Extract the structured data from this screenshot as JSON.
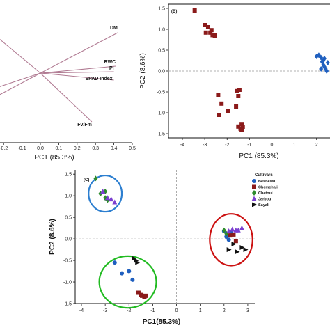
{
  "colors": {
    "axis": "#111111",
    "zero_line": "#999999",
    "loading_line": "#b07a92",
    "dark_red": "#8b1a1a",
    "blue": "#1f5fbf",
    "green": "#2e8b2e",
    "purple": "#7b3fd0",
    "black": "#111111",
    "ellipse_blue": "#2d7fd0",
    "ellipse_green": "#22bb22",
    "ellipse_red": "#cc1111"
  },
  "chart_data": [
    {
      "panel": "a",
      "type": "scatter",
      "title": "",
      "xlabel": "PC1 (85.3%)",
      "ylabel": "",
      "xlim": [
        -0.25,
        0.5
      ],
      "ylim": [
        -1.0,
        1.0
      ],
      "xticks": [
        "-0.2",
        "-0.1",
        "0.0",
        "0.1",
        "0.2",
        "0.3",
        "0.4",
        "0.5"
      ],
      "loadings": [
        {
          "name": "DM",
          "x": 0.42,
          "y": 0.58
        },
        {
          "name": "RWC",
          "x": 0.41,
          "y": 0.1
        },
        {
          "name": "PI",
          "x": 0.4,
          "y": 0.02
        },
        {
          "name": "SPAD Index",
          "x": 0.4,
          "y": -0.1
        },
        {
          "name": "Fv/Fm",
          "x": 0.28,
          "y": -0.7
        }
      ],
      "origin_lines_to_left": [
        {
          "x": -0.25,
          "y": 0.55
        },
        {
          "x": -0.25,
          "y": -0.22
        },
        {
          "x": -0.25,
          "y": -0.35
        }
      ]
    },
    {
      "panel": "b",
      "label": "(B)",
      "type": "scatter",
      "title": "",
      "xlabel": "PC1 (85.3%)",
      "ylabel": "PC2 (8.6%)",
      "xlim": [
        -4,
        2.6
      ],
      "ylim": [
        -1.6,
        1.6
      ],
      "xticks": [
        "-4",
        "-3",
        "-2",
        "-1",
        "0",
        "1",
        "2"
      ],
      "yticks": [
        "1.5",
        "1.0",
        "0.5",
        "0.0",
        "-0.5",
        "-1.0",
        "-1.5"
      ],
      "series": [
        {
          "name": "",
          "color": "dark_red",
          "marker": "square",
          "x": [
            -3.45,
            -3.0,
            -2.95,
            -2.85,
            -2.75,
            -2.7,
            -2.65,
            -2.55,
            -2.4,
            -2.25,
            -2.35,
            -1.95,
            -1.55,
            -1.5,
            -1.45,
            -1.6,
            -1.35,
            -1.5,
            -1.4,
            -1.35,
            -1.3
          ],
          "y": [
            1.45,
            1.1,
            0.92,
            1.05,
            0.92,
            0.98,
            0.86,
            0.85,
            -0.58,
            -0.78,
            -1.05,
            -0.95,
            -0.48,
            -0.6,
            -0.45,
            -0.85,
            -1.27,
            -1.33,
            -1.38,
            -1.4,
            -1.35
          ]
        },
        {
          "name": "",
          "color": "blue",
          "marker": "diamond",
          "x": [
            2.0,
            2.1,
            2.2,
            2.25,
            2.3,
            2.35,
            2.4,
            2.45,
            2.2,
            2.3,
            2.35,
            2.5
          ],
          "y": [
            0.35,
            0.38,
            0.32,
            0.22,
            0.15,
            0.1,
            0.05,
            0.0,
            0.05,
            0.25,
            0.3,
            0.2
          ]
        }
      ]
    },
    {
      "panel": "c",
      "label": "(C)",
      "type": "scatter",
      "title": "",
      "xlabel": "PC1(85.3%)",
      "ylabel": "PC2 (8.6%)",
      "xlim": [
        -4,
        3.5
      ],
      "ylim": [
        -1.5,
        1.6
      ],
      "xticks": [
        "-4",
        "-3",
        "-2",
        "-1",
        "0",
        "1",
        "2",
        "3"
      ],
      "yticks": [
        "1.5",
        "1.0",
        "0.5",
        "0.0",
        "-0.5",
        "-1.0",
        "-1.5"
      ],
      "legend_title": "Cultivars",
      "legend_position": "top-right",
      "series": [
        {
          "name": "Besbessi",
          "color": "blue",
          "marker": "circle",
          "x": [
            -2.6,
            -2.3,
            -2.0,
            -1.85,
            2.0,
            2.1,
            2.3,
            2.2
          ],
          "y": [
            -0.55,
            -0.8,
            -0.75,
            -0.95,
            0.18,
            0.05,
            0.15,
            -0.02
          ]
        },
        {
          "name": "Chemchali",
          "color": "dark_red",
          "marker": "square",
          "x": [
            -1.6,
            -1.5,
            -1.45,
            -1.35,
            -1.3,
            2.25,
            2.4,
            2.5
          ],
          "y": [
            -1.25,
            -1.3,
            -1.32,
            -1.35,
            -1.32,
            0.08,
            0.1,
            -0.05
          ]
        },
        {
          "name": "Chetoui",
          "color": "green",
          "marker": "diamond",
          "x": [
            -3.4,
            -3.2,
            -3.0,
            -3.0,
            -2.9,
            2.0,
            2.1
          ],
          "y": [
            1.4,
            1.05,
            0.95,
            1.1,
            0.9,
            0.2,
            0.12
          ]
        },
        {
          "name": "Jarbou",
          "color": "purple",
          "marker": "triangle-up",
          "x": [
            -3.1,
            -2.9,
            -2.75,
            -2.6,
            2.2,
            2.35,
            2.5,
            2.6,
            2.75
          ],
          "y": [
            1.1,
            0.95,
            0.92,
            0.85,
            0.18,
            0.22,
            0.2,
            0.2,
            0.25
          ]
        },
        {
          "name": "Sayali",
          "color": "black",
          "marker": "triangle-right",
          "x": [
            -1.8,
            -1.7,
            -1.65,
            2.2,
            2.4,
            2.55,
            2.75,
            2.9
          ],
          "y": [
            -0.45,
            -0.5,
            -0.55,
            -0.25,
            -0.12,
            -0.3,
            -0.2,
            -0.25
          ]
        }
      ],
      "ellipses": [
        {
          "color": "ellipse_blue",
          "cx": -3.0,
          "cy": 1.05,
          "rx": 0.7,
          "ry": 0.42
        },
        {
          "color": "ellipse_green",
          "cx": -2.05,
          "cy": -1.0,
          "rx": 1.2,
          "ry": 0.6
        },
        {
          "color": "ellipse_red",
          "cx": 2.3,
          "cy": -0.02,
          "rx": 0.9,
          "ry": 0.6
        }
      ]
    }
  ]
}
